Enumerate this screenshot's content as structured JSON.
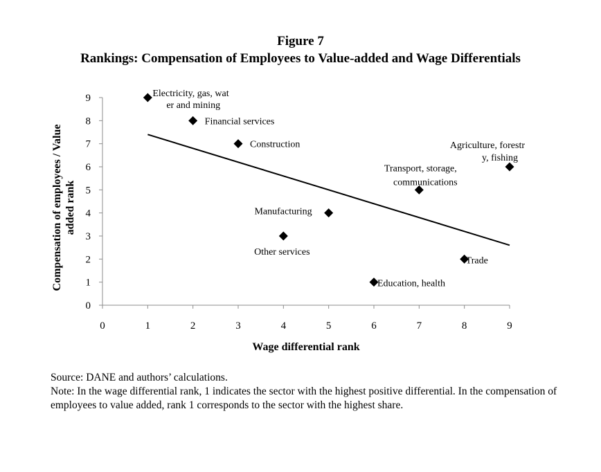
{
  "figure": {
    "number": "Figure 7",
    "title": "Rankings: Compensation of Employees to Value-added and Wage Differentials"
  },
  "chart_data": {
    "type": "scatter",
    "title": "Rankings: Compensation of Employees to Value-added and Wage Differentials",
    "xlabel": "Wage differential rank",
    "ylabel_lines": [
      "Compensation of employees / Value",
      "added rank"
    ],
    "xlim": [
      0,
      9
    ],
    "ylim": [
      0,
      9
    ],
    "xticks": [
      0,
      1,
      2,
      3,
      4,
      5,
      6,
      7,
      8,
      9
    ],
    "yticks": [
      0,
      1,
      2,
      3,
      4,
      5,
      6,
      7,
      8,
      9
    ],
    "grid": false,
    "marker": "diamond",
    "points": [
      {
        "x": 1,
        "y": 9,
        "label_lines": [
          "Electricity, gas, wat",
          "er and mining"
        ]
      },
      {
        "x": 2,
        "y": 8,
        "label_lines": [
          "Financial services"
        ]
      },
      {
        "x": 3,
        "y": 7,
        "label_lines": [
          "Construction"
        ]
      },
      {
        "x": 9,
        "y": 6,
        "label_lines": [
          "Agriculture, forestr",
          "y, fishing"
        ]
      },
      {
        "x": 7,
        "y": 5,
        "label_lines": [
          "Transport, storage,",
          "communications"
        ]
      },
      {
        "x": 5,
        "y": 4,
        "label_lines": [
          "Manufacturing"
        ]
      },
      {
        "x": 4,
        "y": 3,
        "label_lines": [
          "Other services"
        ]
      },
      {
        "x": 8,
        "y": 2,
        "label_lines": [
          "Trade"
        ]
      },
      {
        "x": 6,
        "y": 1,
        "label_lines": [
          "Education, health"
        ]
      }
    ],
    "trendline": {
      "type": "linear",
      "x": [
        1,
        9
      ],
      "y": [
        7.4,
        2.6
      ]
    }
  },
  "notes": {
    "source": "Source: DANE and authors’ calculations.",
    "note": "Note: In the wage differential rank, 1 indicates the sector with the highest positive differential. In the compensation of employees to value added, rank 1 corresponds to the sector with the highest share."
  }
}
